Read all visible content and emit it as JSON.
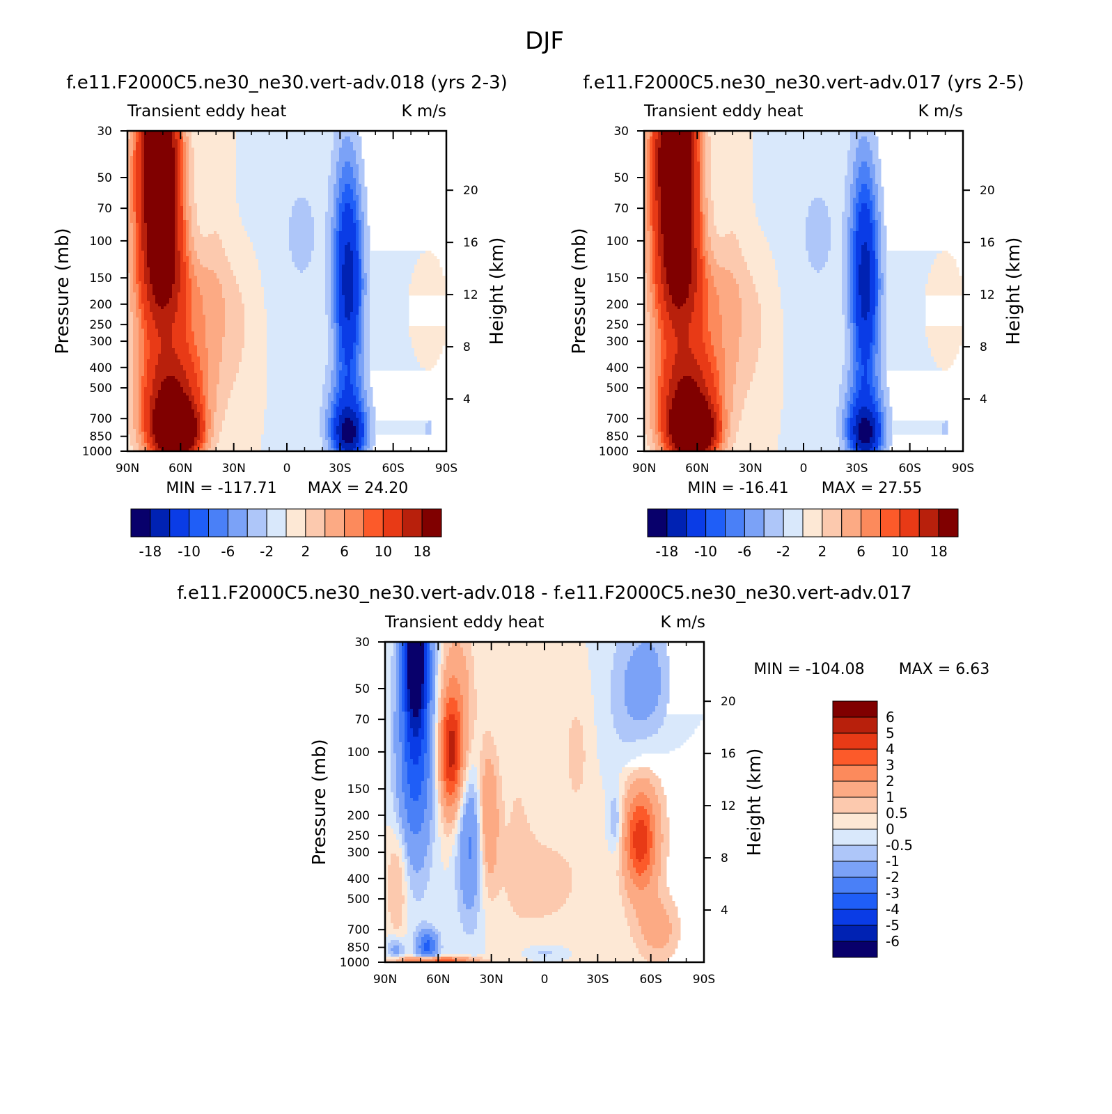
{
  "figure_title": "DJF",
  "palette": [
    "#08006b",
    "#0022b3",
    "#0a3ce6",
    "#1f5ef7",
    "#4a80f7",
    "#7ba2f7",
    "#aec6f9",
    "#d9e8fb",
    "#fde8d5",
    "#fcc9ae",
    "#fcaa84",
    "#fc8a5c",
    "#fc5a2a",
    "#e83a16",
    "#b8200c",
    "#800000"
  ],
  "chart_data": [
    {
      "type": "contour",
      "title": "f.e11.F2000C5.ne30_ne30.vert-adv.018 (yrs 2-3)",
      "left_label": "Transient eddy heat",
      "right_label": "K m/s",
      "ylabel": "Pressure (mb)",
      "ylabel_right": "Height (km)",
      "x_ticks": [
        "90N",
        "60N",
        "30N",
        "0",
        "30S",
        "60S",
        "90S"
      ],
      "y_ticks": [
        30,
        50,
        70,
        100,
        150,
        200,
        250,
        300,
        400,
        500,
        700,
        850,
        1000
      ],
      "height_ticks": [
        4,
        8,
        12,
        16,
        20
      ],
      "min_label": "MIN = -117.71",
      "max_label": "MAX = 24.20",
      "colorbar_labels": [
        "-18",
        "-10",
        "-6",
        "-2",
        "2",
        "6",
        "10",
        "18"
      ],
      "strat_scale": 1.0,
      "tropo_scale": 1.0
    },
    {
      "type": "contour",
      "title": "f.e11.F2000C5.ne30_ne30.vert-adv.017 (yrs 2-5)",
      "left_label": "Transient eddy heat",
      "right_label": "K m/s",
      "ylabel": "Pressure (mb)",
      "ylabel_right": "Height (km)",
      "x_ticks": [
        "90N",
        "60N",
        "30N",
        "0",
        "30S",
        "60S",
        "90S"
      ],
      "y_ticks": [
        30,
        50,
        70,
        100,
        150,
        200,
        250,
        300,
        400,
        500,
        700,
        850,
        1000
      ],
      "height_ticks": [
        4,
        8,
        12,
        16,
        20
      ],
      "min_label": "MIN = -16.41",
      "max_label": "MAX = 27.55",
      "colorbar_labels": [
        "-18",
        "-10",
        "-6",
        "-2",
        "2",
        "6",
        "10",
        "18"
      ],
      "strat_scale": 1.15,
      "tropo_scale": 1.0
    },
    {
      "type": "contour",
      "title": "f.e11.F2000C5.ne30_ne30.vert-adv.018 - f.e11.F2000C5.ne30_ne30.vert-adv.017",
      "left_label": "Transient eddy heat",
      "right_label": "K m/s",
      "ylabel": "Pressure (mb)",
      "ylabel_right": "Height (km)",
      "x_ticks": [
        "90N",
        "60N",
        "30N",
        "0",
        "30S",
        "60S",
        "90S"
      ],
      "y_ticks": [
        30,
        50,
        70,
        100,
        150,
        200,
        250,
        300,
        400,
        500,
        700,
        850,
        1000
      ],
      "height_ticks": [
        4,
        8,
        12,
        16,
        20
      ],
      "min_label": "MIN = -104.08",
      "max_label": "MAX = 6.63",
      "colorbar_labels": [
        "6",
        "5",
        "4",
        "3",
        "2",
        "1",
        "0.5",
        "0",
        "-0.5",
        "-1",
        "-2",
        "-3",
        "-4",
        "-5",
        "-6"
      ]
    }
  ]
}
